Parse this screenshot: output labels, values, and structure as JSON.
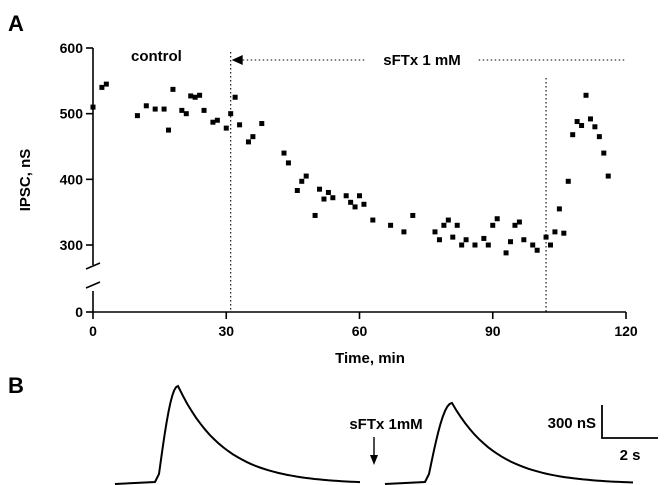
{
  "figure": {
    "panel_a_label": "A",
    "panel_b_label": "B"
  },
  "chart_data": [
    {
      "type": "scatter",
      "panel": "A",
      "xlabel": "Time, min",
      "ylabel": "IPSC, nS",
      "xlim": [
        0,
        120
      ],
      "ylim": [
        0,
        600
      ],
      "y_axis_break": [
        0,
        270
      ],
      "xticks": [
        0,
        30,
        60,
        90,
        120
      ],
      "yticks": [
        0,
        300,
        400,
        500,
        600
      ],
      "grid": false,
      "annotations": {
        "control": "control",
        "drug": "sFTx  1 mM",
        "drug_start": 31,
        "drug_end": 102
      },
      "series": [
        {
          "x": [
            0,
            2,
            3,
            10,
            12,
            14,
            16,
            17,
            18,
            20,
            21,
            22,
            23,
            24,
            25,
            27,
            28,
            30,
            31,
            32,
            33,
            35,
            36,
            38,
            43,
            44,
            46,
            47,
            48,
            50,
            51,
            52,
            53,
            54,
            57,
            58,
            59,
            60,
            61,
            63,
            67,
            70,
            72,
            77,
            78,
            79,
            80,
            81,
            82,
            83,
            84,
            86,
            88,
            89,
            90,
            91,
            93,
            94,
            95,
            96,
            97,
            99,
            100,
            102,
            103,
            104,
            105,
            106,
            107,
            108,
            109,
            110,
            111,
            112,
            113,
            114,
            115,
            116
          ],
          "y": [
            510,
            540,
            545,
            497,
            512,
            507,
            507,
            475,
            537,
            505,
            500,
            527,
            525,
            528,
            505,
            487,
            490,
            478,
            500,
            525,
            483,
            457,
            465,
            485,
            440,
            425,
            383,
            397,
            405,
            345,
            385,
            370,
            380,
            372,
            375,
            365,
            358,
            375,
            362,
            338,
            330,
            320,
            345,
            320,
            308,
            330,
            338,
            312,
            330,
            300,
            308,
            300,
            310,
            300,
            330,
            340,
            288,
            305,
            330,
            335,
            308,
            300,
            292,
            312,
            300,
            320,
            355,
            318,
            397,
            468,
            488,
            482,
            528,
            492,
            480,
            465,
            440,
            405
          ]
        }
      ]
    },
    {
      "type": "line",
      "panel": "B",
      "traces": [
        "before sFTx",
        "after sFTx 1 mM"
      ],
      "annotations": {
        "drug": "sFTx  1mM"
      },
      "scalebar": {
        "y_label": "300 nS",
        "x_label": "2 s"
      }
    }
  ]
}
